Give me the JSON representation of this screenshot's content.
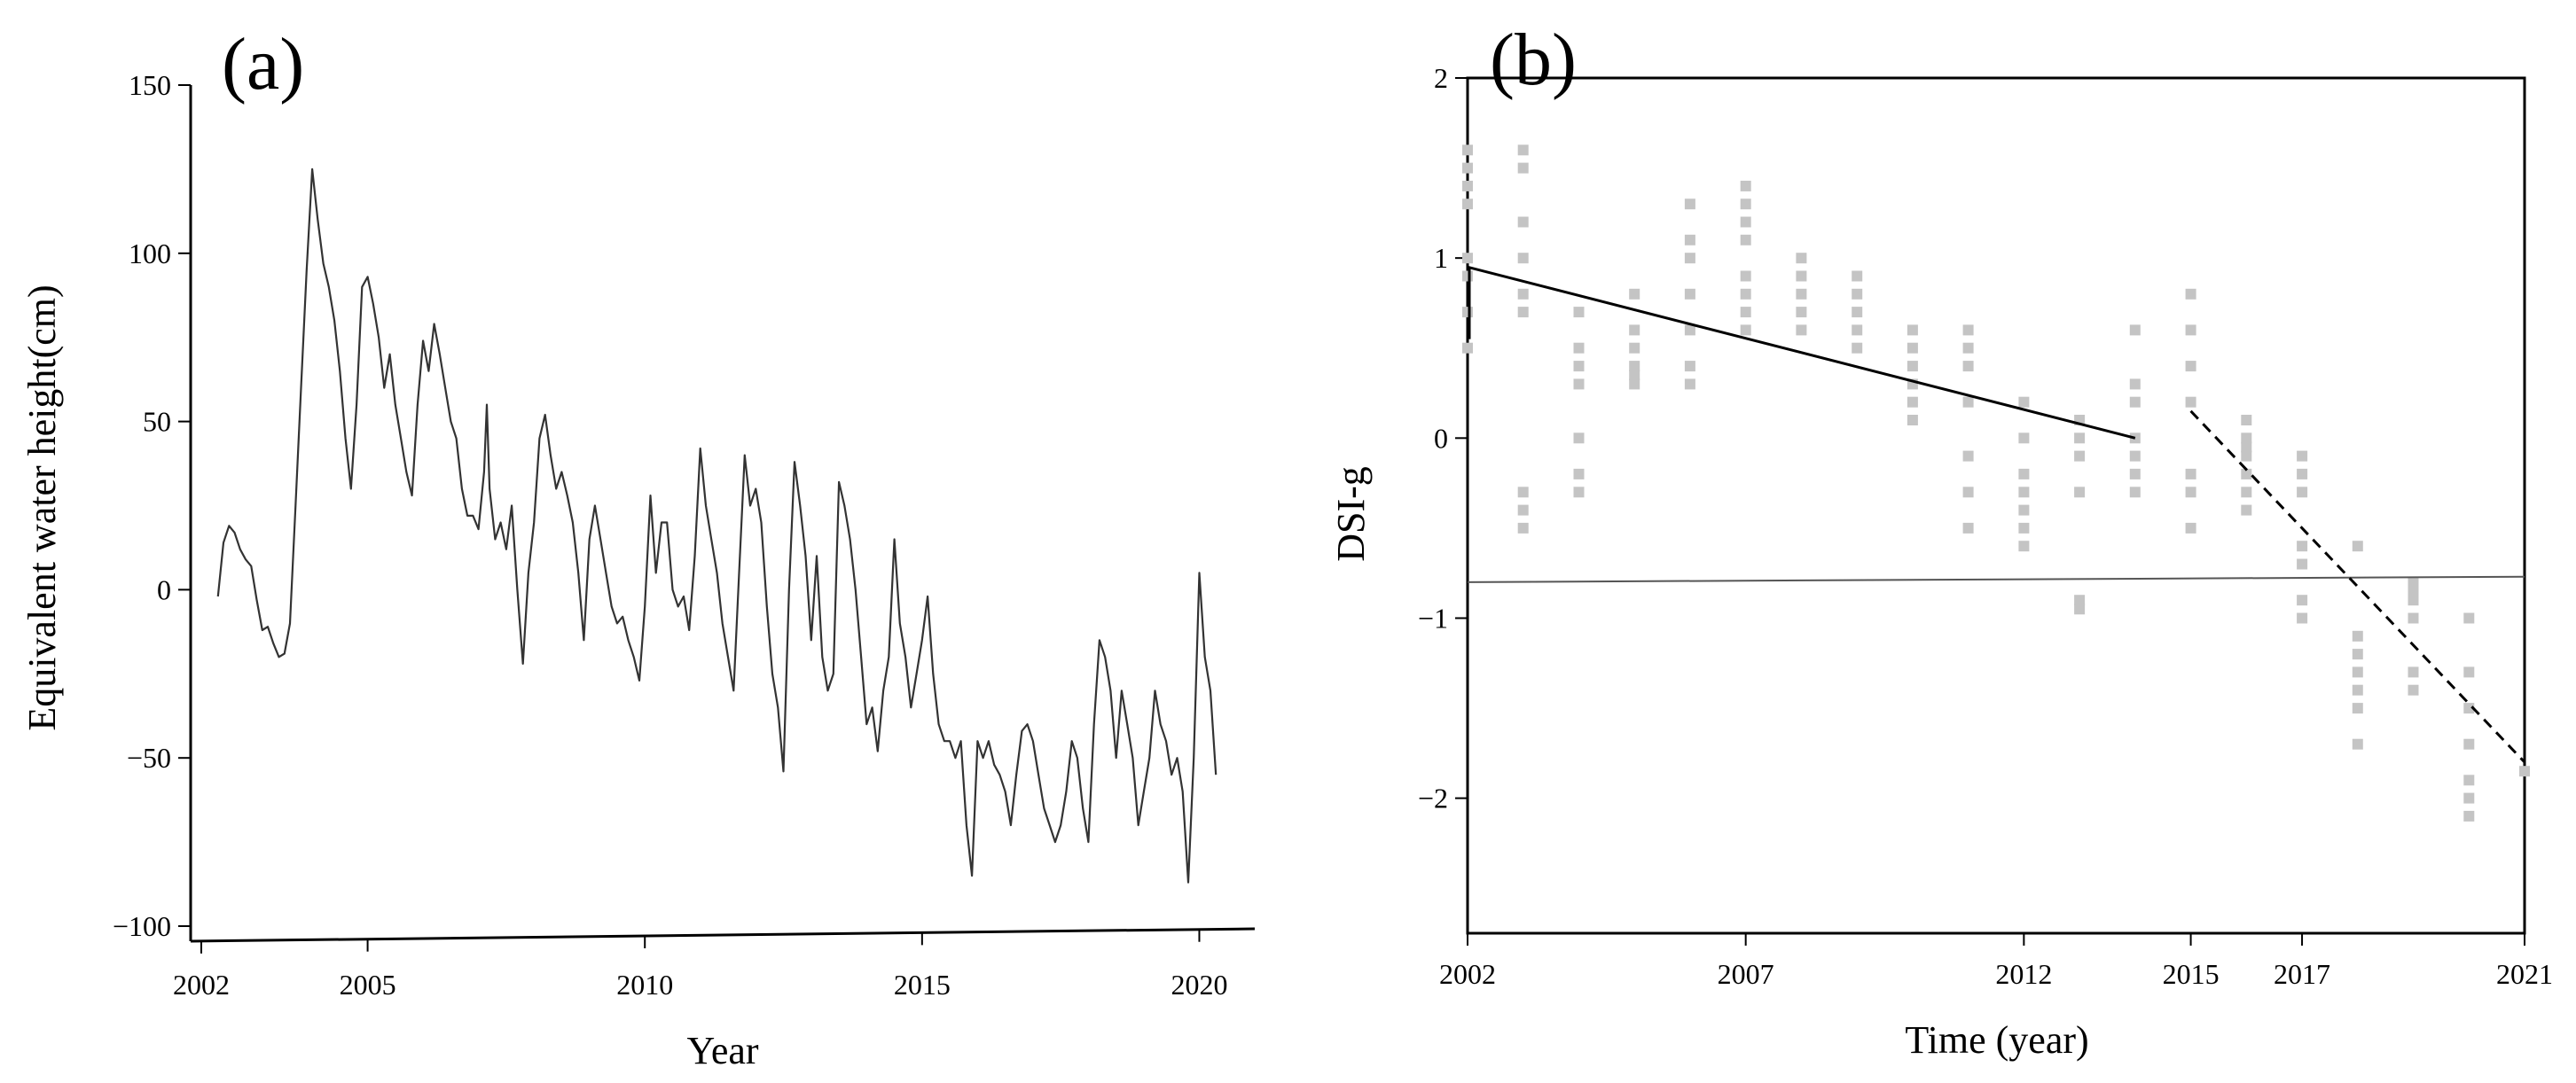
{
  "chart_data": [
    {
      "type": "line",
      "panel_label": "(a)",
      "title": "",
      "xlabel": "Year",
      "ylabel": "Equivalent water height(cm)",
      "xlim": [
        2002,
        2021
      ],
      "ylim": [
        -100,
        150
      ],
      "x_ticks": [
        2002,
        2005,
        2010,
        2015,
        2020
      ],
      "x_tick_labels": [
        "2002",
        "2005",
        "2010",
        "2015",
        "2020"
      ],
      "y_ticks": [
        150,
        100,
        50,
        0,
        -50,
        -100
      ],
      "y_tick_labels": [
        "150",
        "100",
        "50",
        "0",
        "−50",
        "−100"
      ],
      "grid": false,
      "series": [
        {
          "color": "#333333",
          "points": [
            [
              2002.3,
              -2
            ],
            [
              2002.4,
              14
            ],
            [
              2002.5,
              19
            ],
            [
              2002.6,
              17
            ],
            [
              2002.7,
              12
            ],
            [
              2002.8,
              9
            ],
            [
              2002.9,
              7
            ],
            [
              2003.0,
              -3
            ],
            [
              2003.1,
              -12
            ],
            [
              2003.2,
              -11
            ],
            [
              2003.3,
              -16
            ],
            [
              2003.4,
              -20
            ],
            [
              2003.5,
              -19
            ],
            [
              2003.6,
              -10
            ],
            [
              2003.7,
              25
            ],
            [
              2003.8,
              60
            ],
            [
              2003.9,
              95
            ],
            [
              2004.0,
              125
            ],
            [
              2004.1,
              110
            ],
            [
              2004.2,
              97
            ],
            [
              2004.3,
              90
            ],
            [
              2004.4,
              80
            ],
            [
              2004.5,
              65
            ],
            [
              2004.6,
              45
            ],
            [
              2004.7,
              30
            ],
            [
              2004.8,
              55
            ],
            [
              2004.9,
              90
            ],
            [
              2005.0,
              93
            ],
            [
              2005.1,
              85
            ],
            [
              2005.2,
              75
            ],
            [
              2005.3,
              60
            ],
            [
              2005.4,
              70
            ],
            [
              2005.5,
              55
            ],
            [
              2005.6,
              45
            ],
            [
              2005.7,
              35
            ],
            [
              2005.8,
              28
            ],
            [
              2005.9,
              55
            ],
            [
              2006.0,
              74
            ],
            [
              2006.1,
              65
            ],
            [
              2006.2,
              79
            ],
            [
              2006.3,
              70
            ],
            [
              2006.4,
              60
            ],
            [
              2006.5,
              50
            ],
            [
              2006.6,
              45
            ],
            [
              2006.7,
              30
            ],
            [
              2006.8,
              22
            ],
            [
              2006.9,
              22
            ],
            [
              2007.0,
              18
            ],
            [
              2007.1,
              35
            ],
            [
              2007.15,
              55
            ],
            [
              2007.2,
              30
            ],
            [
              2007.3,
              15
            ],
            [
              2007.4,
              20
            ],
            [
              2007.5,
              12
            ],
            [
              2007.6,
              25
            ],
            [
              2007.7,
              0
            ],
            [
              2007.8,
              -22
            ],
            [
              2007.9,
              5
            ],
            [
              2008.0,
              20
            ],
            [
              2008.1,
              45
            ],
            [
              2008.2,
              52
            ],
            [
              2008.3,
              40
            ],
            [
              2008.4,
              30
            ],
            [
              2008.5,
              35
            ],
            [
              2008.6,
              28
            ],
            [
              2008.7,
              20
            ],
            [
              2008.8,
              5
            ],
            [
              2008.9,
              -15
            ],
            [
              2009.0,
              15
            ],
            [
              2009.1,
              25
            ],
            [
              2009.2,
              15
            ],
            [
              2009.3,
              5
            ],
            [
              2009.4,
              -5
            ],
            [
              2009.5,
              -10
            ],
            [
              2009.6,
              -8
            ],
            [
              2009.7,
              -15
            ],
            [
              2009.8,
              -20
            ],
            [
              2009.9,
              -27
            ],
            [
              2010.0,
              -5
            ],
            [
              2010.1,
              28
            ],
            [
              2010.2,
              5
            ],
            [
              2010.3,
              20
            ],
            [
              2010.4,
              20
            ],
            [
              2010.5,
              0
            ],
            [
              2010.6,
              -5
            ],
            [
              2010.7,
              -2
            ],
            [
              2010.8,
              -12
            ],
            [
              2010.9,
              10
            ],
            [
              2011.0,
              42
            ],
            [
              2011.1,
              25
            ],
            [
              2011.2,
              15
            ],
            [
              2011.3,
              5
            ],
            [
              2011.4,
              -10
            ],
            [
              2011.5,
              -20
            ],
            [
              2011.6,
              -30
            ],
            [
              2011.7,
              5
            ],
            [
              2011.8,
              40
            ],
            [
              2011.9,
              25
            ],
            [
              2012.0,
              30
            ],
            [
              2012.1,
              20
            ],
            [
              2012.2,
              -5
            ],
            [
              2012.3,
              -25
            ],
            [
              2012.4,
              -35
            ],
            [
              2012.5,
              -54
            ],
            [
              2012.6,
              0
            ],
            [
              2012.7,
              38
            ],
            [
              2012.8,
              25
            ],
            [
              2012.9,
              10
            ],
            [
              2013.0,
              -15
            ],
            [
              2013.1,
              10
            ],
            [
              2013.2,
              -20
            ],
            [
              2013.3,
              -30
            ],
            [
              2013.4,
              -25
            ],
            [
              2013.5,
              32
            ],
            [
              2013.6,
              25
            ],
            [
              2013.7,
              15
            ],
            [
              2013.8,
              0
            ],
            [
              2013.9,
              -20
            ],
            [
              2014.0,
              -40
            ],
            [
              2014.1,
              -35
            ],
            [
              2014.2,
              -48
            ],
            [
              2014.3,
              -30
            ],
            [
              2014.4,
              -20
            ],
            [
              2014.5,
              15
            ],
            [
              2014.6,
              -10
            ],
            [
              2014.7,
              -20
            ],
            [
              2014.8,
              -35
            ],
            [
              2014.9,
              -25
            ],
            [
              2015.0,
              -15
            ],
            [
              2015.1,
              -2
            ],
            [
              2015.2,
              -25
            ],
            [
              2015.3,
              -40
            ],
            [
              2015.4,
              -45
            ],
            [
              2015.5,
              -45
            ],
            [
              2015.6,
              -50
            ],
            [
              2015.7,
              -45
            ],
            [
              2015.8,
              -70
            ],
            [
              2015.9,
              -85
            ],
            [
              2016.0,
              -45
            ],
            [
              2016.1,
              -50
            ],
            [
              2016.2,
              -45
            ],
            [
              2016.3,
              -52
            ],
            [
              2016.4,
              -55
            ],
            [
              2016.5,
              -60
            ],
            [
              2016.6,
              -70
            ],
            [
              2016.7,
              -55
            ],
            [
              2016.8,
              -42
            ],
            [
              2016.9,
              -40
            ],
            [
              2017.0,
              -45
            ],
            [
              2017.1,
              -55
            ],
            [
              2017.2,
              -65
            ],
            [
              2017.3,
              -70
            ],
            [
              2017.4,
              -75
            ],
            [
              2017.5,
              -70
            ],
            [
              2017.6,
              -60
            ],
            [
              2017.7,
              -45
            ],
            [
              2017.8,
              -50
            ],
            [
              2017.9,
              -65
            ],
            [
              2018.0,
              -75
            ],
            [
              2018.1,
              -40
            ],
            [
              2018.2,
              -15
            ],
            [
              2018.3,
              -20
            ],
            [
              2018.4,
              -30
            ],
            [
              2018.5,
              -50
            ],
            [
              2018.6,
              -30
            ],
            [
              2018.7,
              -40
            ],
            [
              2018.8,
              -50
            ],
            [
              2018.9,
              -70
            ],
            [
              2019.0,
              -60
            ],
            [
              2019.1,
              -50
            ],
            [
              2019.2,
              -30
            ],
            [
              2019.3,
              -40
            ],
            [
              2019.4,
              -45
            ],
            [
              2019.5,
              -55
            ],
            [
              2019.6,
              -50
            ],
            [
              2019.7,
              -60
            ],
            [
              2019.8,
              -87
            ],
            [
              2019.9,
              -50
            ],
            [
              2020.0,
              5
            ],
            [
              2020.1,
              -20
            ],
            [
              2020.2,
              -30
            ],
            [
              2020.3,
              -55
            ]
          ]
        }
      ]
    },
    {
      "type": "scatter",
      "panel_label": "(b)",
      "title": "",
      "xlabel": "Time (year)",
      "ylabel": "DSI-g",
      "xlim": [
        2002,
        2021
      ],
      "ylim": [
        -2.75,
        2
      ],
      "x_ticks": [
        2002,
        2007,
        2012,
        2015,
        2017,
        2021
      ],
      "x_tick_labels": [
        "2002",
        "2007",
        "2012",
        "2015",
        "2017",
        "2021"
      ],
      "y_ticks": [
        2,
        1,
        0,
        -1,
        -2
      ],
      "y_tick_labels": [
        "2",
        "1",
        "0",
        "−1",
        "−2"
      ],
      "grid": false,
      "point_color": "#c4c4c4",
      "points_by_year": [
        {
          "x": 2002.0,
          "values": [
            1.6,
            1.5,
            1.4,
            1.3,
            1.0,
            0.9,
            0.7,
            0.5
          ]
        },
        {
          "x": 2003.0,
          "values": [
            1.6,
            1.5,
            1.2,
            1.0,
            0.8,
            0.7,
            -0.3,
            -0.4,
            -0.5
          ]
        },
        {
          "x": 2004.0,
          "values": [
            0.7,
            0.5,
            0.4,
            0.3,
            0.0,
            -0.2,
            -0.3
          ]
        },
        {
          "x": 2005.0,
          "values": [
            0.8,
            0.6,
            0.5,
            0.4,
            0.35,
            0.3
          ]
        },
        {
          "x": 2006.0,
          "values": [
            1.3,
            1.1,
            1.0,
            0.8,
            0.6,
            0.4,
            0.3
          ]
        },
        {
          "x": 2007.0,
          "values": [
            1.4,
            1.3,
            1.2,
            1.1,
            0.9,
            0.8,
            0.7,
            0.6
          ]
        },
        {
          "x": 2008.0,
          "values": [
            1.0,
            0.9,
            0.8,
            0.7,
            0.6
          ]
        },
        {
          "x": 2009.0,
          "values": [
            0.9,
            0.8,
            0.7,
            0.6,
            0.5
          ]
        },
        {
          "x": 2010.0,
          "values": [
            0.6,
            0.5,
            0.4,
            0.3,
            0.2,
            0.1
          ]
        },
        {
          "x": 2011.0,
          "values": [
            0.6,
            0.5,
            0.4,
            0.2,
            -0.1,
            -0.3,
            -0.5
          ]
        },
        {
          "x": 2012.0,
          "values": [
            0.2,
            0.0,
            -0.2,
            -0.3,
            -0.4,
            -0.5,
            -0.6
          ]
        },
        {
          "x": 2013.0,
          "values": [
            0.1,
            0.0,
            -0.1,
            -0.3,
            -0.9,
            -0.95
          ]
        },
        {
          "x": 2014.0,
          "values": [
            0.6,
            0.3,
            0.2,
            0.0,
            -0.1,
            -0.2,
            -0.3
          ]
        },
        {
          "x": 2015.0,
          "values": [
            0.8,
            0.6,
            0.4,
            0.2,
            -0.2,
            -0.3,
            -0.5
          ]
        },
        {
          "x": 2016.0,
          "values": [
            0.1,
            0.0,
            -0.05,
            -0.1,
            -0.2,
            -0.3,
            -0.4
          ]
        },
        {
          "x": 2017.0,
          "values": [
            -0.1,
            -0.2,
            -0.3,
            -0.6,
            -0.7,
            -0.9,
            -1.0
          ]
        },
        {
          "x": 2018.0,
          "values": [
            -0.6,
            -1.1,
            -1.2,
            -1.3,
            -1.4,
            -1.5,
            -1.7
          ]
        },
        {
          "x": 2019.0,
          "values": [
            -0.8,
            -0.85,
            -0.9,
            -1.0,
            -1.3,
            -1.4
          ]
        },
        {
          "x": 2020.0,
          "values": [
            -1.0,
            -1.3,
            -1.5,
            -1.7,
            -1.9,
            -2.0,
            -2.1
          ]
        },
        {
          "x": 2021.0,
          "values": [
            -1.85
          ]
        }
      ],
      "trend_solid": {
        "x": [
          2002.0,
          2014.0
        ],
        "y": [
          0.95,
          0.0
        ],
        "color": "#000000"
      },
      "trend_dashed": {
        "x": [
          2015.0,
          2021.0
        ],
        "y": [
          0.15,
          -1.8
        ],
        "color": "#000000"
      },
      "threshold_line": {
        "x": [
          2002.0,
          2021.0
        ],
        "y": [
          -0.8,
          -0.77
        ],
        "color": "#555555"
      },
      "initial_segment": {
        "x": [
          2002.0,
          2002.0
        ],
        "y": [
          0.95,
          0.55
        ],
        "color": "#000000"
      }
    }
  ]
}
